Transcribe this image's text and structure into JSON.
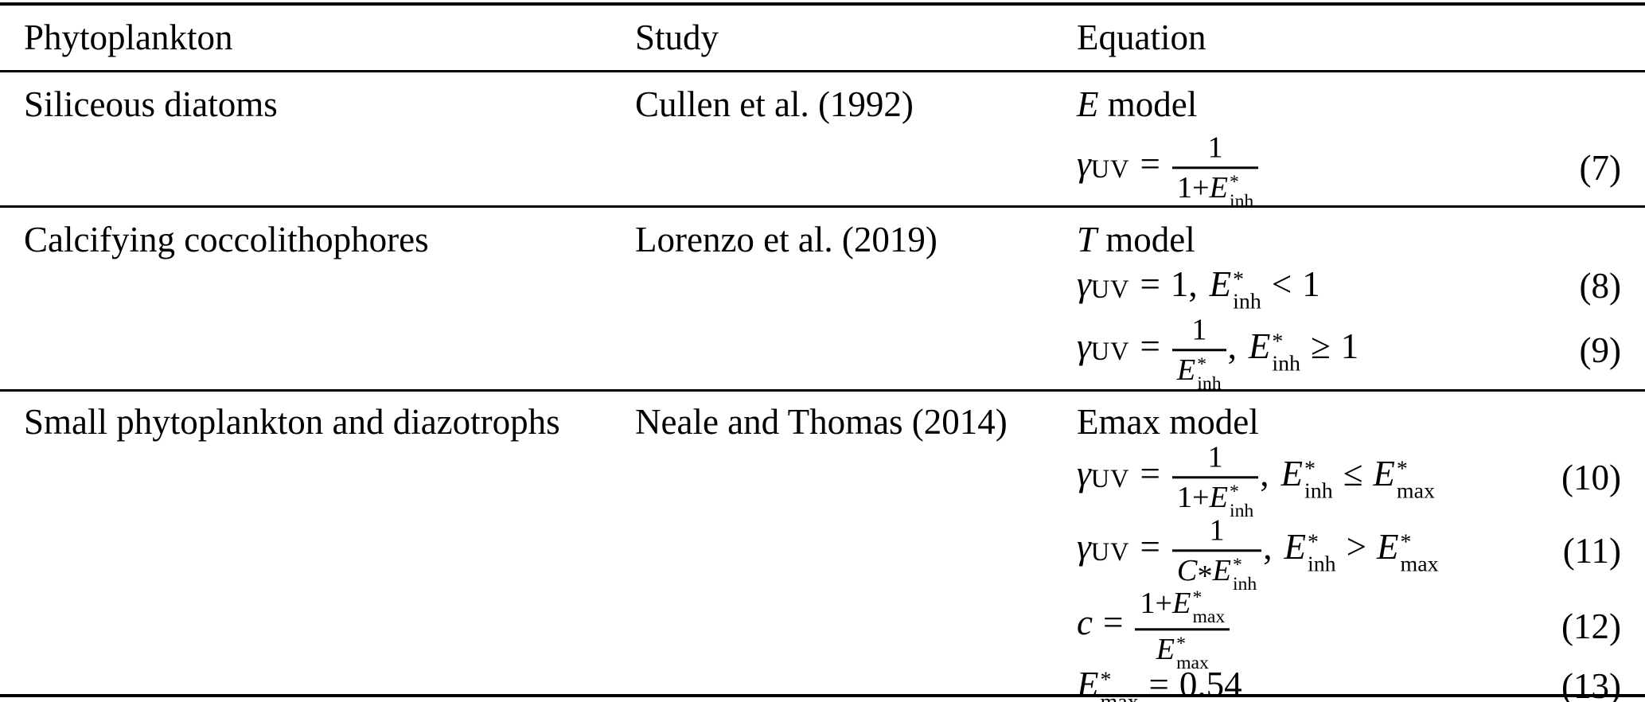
{
  "table": {
    "columns": [
      "Phytoplankton",
      "Study",
      "Equation"
    ],
    "rows": [
      {
        "phytoplankton": "Siliceous diatoms",
        "study": "Cullen et al. (1992)",
        "model_var": "E",
        "model_word": " model",
        "eq_numbers": [
          "(7)"
        ]
      },
      {
        "phytoplankton": "Calcifying coccolithophores",
        "study": "Lorenzo et al. (2019)",
        "model_var": "T",
        "model_word": " model",
        "eq_numbers": [
          "(8)",
          "(9)"
        ]
      },
      {
        "phytoplankton": "Small phytoplankton and diazotrophs",
        "study": "Neale and Thomas (2014)",
        "model_var": "",
        "model_word": "Emax model",
        "eq_numbers": [
          "(10)",
          "(11)",
          "(12)",
          "(13)"
        ]
      }
    ]
  },
  "tokens": {
    "gamma": "γ",
    "uv": "UV",
    "eq": "=",
    "one": "1",
    "oneplus": "1+",
    "E": "E",
    "star": "*",
    "inh": "inh",
    "max": "max",
    "comma": ",",
    "lt": "<",
    "gt": ">",
    "leq": "≤",
    "geq": "≥",
    "C": "C",
    "ast": "*",
    "c": "c",
    "val054": "0.54"
  }
}
